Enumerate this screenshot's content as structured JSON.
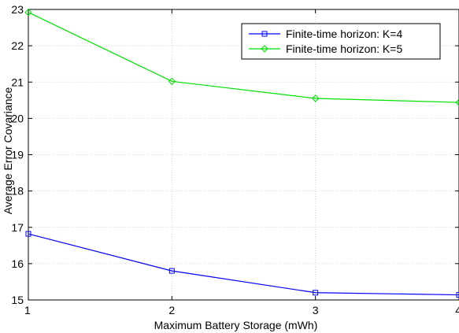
{
  "chart_data": {
    "type": "line",
    "title": "",
    "xlabel": "Maximum Battery Storage (mWh)",
    "ylabel": "Average Error Covariance",
    "x": [
      1,
      2,
      3,
      4
    ],
    "xlim": [
      1,
      4
    ],
    "ylim": [
      15,
      23
    ],
    "xticks": [
      1,
      2,
      3,
      4
    ],
    "yticks": [
      15,
      16,
      17,
      18,
      19,
      20,
      21,
      22,
      23
    ],
    "grid": true,
    "legend_position": "top-right",
    "series": [
      {
        "name": "Finite-time horizon: K=4",
        "values": [
          16.82,
          15.8,
          15.2,
          15.14
        ],
        "color": "#0000ff",
        "marker": "square"
      },
      {
        "name": "Finite-time horizon: K=5",
        "values": [
          22.92,
          21.02,
          20.55,
          20.44
        ],
        "color": "#00e000",
        "marker": "diamond"
      }
    ]
  }
}
